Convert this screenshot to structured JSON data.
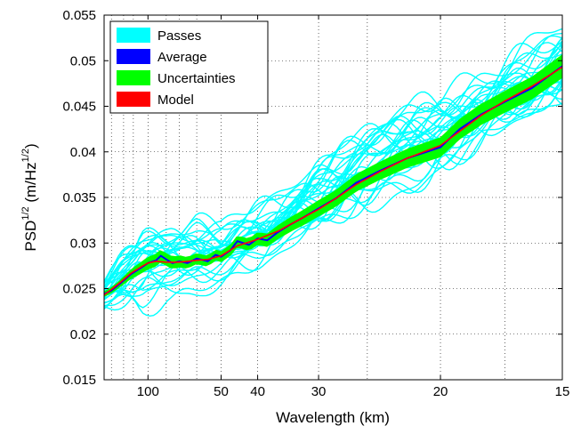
{
  "chart_data": {
    "type": "line",
    "xlabel": "Wavelength (km)",
    "ylabel_main": "PSD",
    "ylabel_sup": "1/2",
    "ylabel_unit_open": " (m/Hz",
    "ylabel_unit_sup": "1/2",
    "ylabel_unit_close": ")",
    "x_scale": "reciprocal (frequency axis labelled by wavelength)",
    "xlim_km": [
      250,
      15
    ],
    "ylim": [
      0.015,
      0.055
    ],
    "grid": true,
    "legend_position": "top-left",
    "x_ticks": [
      {
        "km": 100,
        "label": "100"
      },
      {
        "km": 50,
        "label": "50"
      },
      {
        "km": 40,
        "label": "40"
      },
      {
        "km": 30,
        "label": "30"
      },
      {
        "km": 20,
        "label": "20"
      },
      {
        "km": 15,
        "label": "15"
      }
    ],
    "x_minor_gridlines_km": [
      200,
      150,
      125,
      80,
      70,
      60,
      25,
      17
    ],
    "y_ticks": [
      {
        "value": 0.015,
        "label": "0.015"
      },
      {
        "value": 0.02,
        "label": "0.02"
      },
      {
        "value": 0.025,
        "label": "0.025"
      },
      {
        "value": 0.03,
        "label": "0.03"
      },
      {
        "value": 0.035,
        "label": "0.035"
      },
      {
        "value": 0.04,
        "label": "0.04"
      },
      {
        "value": 0.045,
        "label": "0.045"
      },
      {
        "value": 0.05,
        "label": "0.05"
      },
      {
        "value": 0.055,
        "label": "0.055"
      }
    ],
    "legend": [
      {
        "name": "Passes",
        "color": "#00FFFF"
      },
      {
        "name": "Average",
        "color": "#0000FF"
      },
      {
        "name": "Uncertainties",
        "color": "#00FF00"
      },
      {
        "name": "Model",
        "color": "#FF0000"
      }
    ],
    "colors": {
      "passes": "#00FFFF",
      "average": "#0000FF",
      "uncertainties": "#00FF00",
      "model": "#FF0000"
    },
    "series": {
      "average": [
        {
          "x": 250,
          "y": 0.0244
        },
        {
          "x": 200,
          "y": 0.0248
        },
        {
          "x": 160,
          "y": 0.0256
        },
        {
          "x": 130,
          "y": 0.0266
        },
        {
          "x": 110,
          "y": 0.0273
        },
        {
          "x": 100,
          "y": 0.0278
        },
        {
          "x": 90,
          "y": 0.0281
        },
        {
          "x": 85,
          "y": 0.0286
        },
        {
          "x": 80,
          "y": 0.0282
        },
        {
          "x": 75,
          "y": 0.0278
        },
        {
          "x": 70,
          "y": 0.028
        },
        {
          "x": 65,
          "y": 0.0278
        },
        {
          "x": 60,
          "y": 0.0283
        },
        {
          "x": 55,
          "y": 0.028
        },
        {
          "x": 52,
          "y": 0.0287
        },
        {
          "x": 50,
          "y": 0.0285
        },
        {
          "x": 47,
          "y": 0.0292
        },
        {
          "x": 45,
          "y": 0.0302
        },
        {
          "x": 42,
          "y": 0.0298
        },
        {
          "x": 40,
          "y": 0.0305
        },
        {
          "x": 38,
          "y": 0.0303
        },
        {
          "x": 36,
          "y": 0.0312
        },
        {
          "x": 34,
          "y": 0.032
        },
        {
          "x": 32,
          "y": 0.0328
        },
        {
          "x": 30,
          "y": 0.0338
        },
        {
          "x": 28,
          "y": 0.0349
        },
        {
          "x": 26,
          "y": 0.0366
        },
        {
          "x": 24,
          "y": 0.0379
        },
        {
          "x": 22,
          "y": 0.0393
        },
        {
          "x": 20,
          "y": 0.0405
        },
        {
          "x": 19,
          "y": 0.0425
        },
        {
          "x": 18,
          "y": 0.0441
        },
        {
          "x": 17,
          "y": 0.0455
        },
        {
          "x": 16,
          "y": 0.047
        },
        {
          "x": 15,
          "y": 0.0494
        }
      ],
      "model": [
        {
          "x": 250,
          "y": 0.0243
        },
        {
          "x": 200,
          "y": 0.0249
        },
        {
          "x": 160,
          "y": 0.0257
        },
        {
          "x": 130,
          "y": 0.0267
        },
        {
          "x": 110,
          "y": 0.0274
        },
        {
          "x": 100,
          "y": 0.0278
        },
        {
          "x": 90,
          "y": 0.028
        },
        {
          "x": 80,
          "y": 0.0279
        },
        {
          "x": 70,
          "y": 0.0279
        },
        {
          "x": 60,
          "y": 0.0281
        },
        {
          "x": 55,
          "y": 0.0282
        },
        {
          "x": 50,
          "y": 0.0286
        },
        {
          "x": 45,
          "y": 0.0297
        },
        {
          "x": 40,
          "y": 0.0304
        },
        {
          "x": 36,
          "y": 0.0313
        },
        {
          "x": 32,
          "y": 0.0328
        },
        {
          "x": 30,
          "y": 0.0337
        },
        {
          "x": 28,
          "y": 0.0349
        },
        {
          "x": 26,
          "y": 0.0364
        },
        {
          "x": 24,
          "y": 0.0378
        },
        {
          "x": 22,
          "y": 0.0393
        },
        {
          "x": 20,
          "y": 0.0407
        },
        {
          "x": 18,
          "y": 0.044
        },
        {
          "x": 17,
          "y": 0.0456
        },
        {
          "x": 16,
          "y": 0.0472
        },
        {
          "x": 15,
          "y": 0.0493
        }
      ],
      "uncertainty_halfwidth": [
        {
          "x": 250,
          "y": 0.0003
        },
        {
          "x": 160,
          "y": 0.0004
        },
        {
          "x": 120,
          "y": 0.0006
        },
        {
          "x": 100,
          "y": 0.0007
        },
        {
          "x": 80,
          "y": 0.0007
        },
        {
          "x": 60,
          "y": 0.0006
        },
        {
          "x": 50,
          "y": 0.0006
        },
        {
          "x": 40,
          "y": 0.0007
        },
        {
          "x": 30,
          "y": 0.0009
        },
        {
          "x": 20,
          "y": 0.0011
        },
        {
          "x": 15,
          "y": 0.0013
        }
      ],
      "passes_spread_envelope": [
        {
          "x": 250,
          "low": 0.0215,
          "high": 0.0272
        },
        {
          "x": 160,
          "low": 0.0208,
          "high": 0.031
        },
        {
          "x": 110,
          "low": 0.019,
          "high": 0.0345
        },
        {
          "x": 80,
          "low": 0.0225,
          "high": 0.034
        },
        {
          "x": 60,
          "low": 0.023,
          "high": 0.0355
        },
        {
          "x": 50,
          "low": 0.0245,
          "high": 0.034
        },
        {
          "x": 40,
          "low": 0.026,
          "high": 0.038
        },
        {
          "x": 30,
          "low": 0.0285,
          "high": 0.043
        },
        {
          "x": 20,
          "low": 0.036,
          "high": 0.051
        },
        {
          "x": 15,
          "low": 0.041,
          "high": 0.055
        }
      ],
      "passes_count": 30
    }
  }
}
